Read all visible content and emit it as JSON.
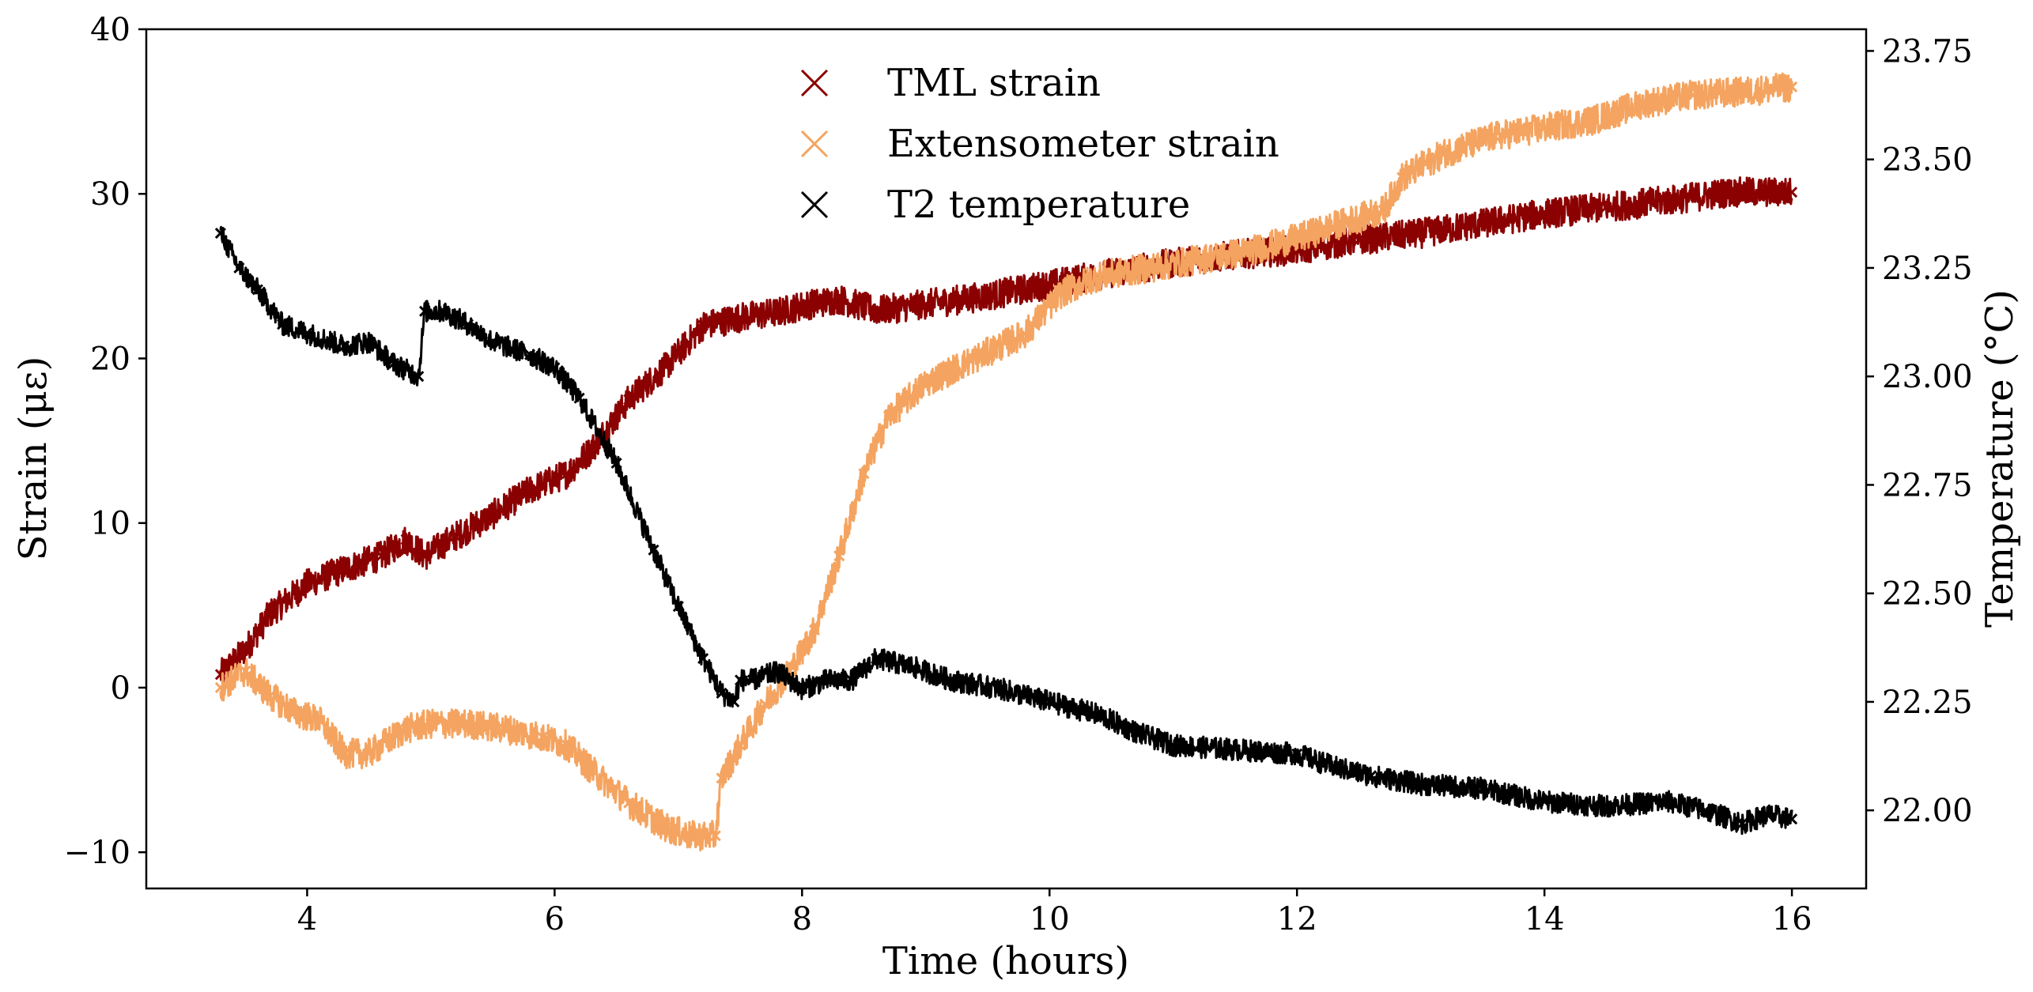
{
  "chart_data": {
    "type": "scatter",
    "title": "",
    "xlabel": "Time (hours)",
    "ylabel": "Strain (με)",
    "y2label": "Temperature (°C)",
    "xlim": [
      2.7,
      16.6
    ],
    "ylim": [
      -12.2,
      40
    ],
    "y2lim": [
      21.82,
      23.8
    ],
    "x_ticks": [
      4,
      6,
      8,
      10,
      12,
      14,
      16
    ],
    "x_tick_labels": [
      "4",
      "6",
      "8",
      "10",
      "12",
      "14",
      "16"
    ],
    "y_ticks": [
      -10,
      0,
      10,
      20,
      30,
      40
    ],
    "y_tick_labels": [
      "−10",
      "0",
      "10",
      "20",
      "30",
      "40"
    ],
    "y2_ticks": [
      22.0,
      22.25,
      22.5,
      22.75,
      23.0,
      23.25,
      23.5,
      23.75
    ],
    "y2_tick_labels": [
      "22.00",
      "22.25",
      "22.50",
      "22.75",
      "23.00",
      "23.25",
      "23.50",
      "23.75"
    ],
    "grid": false,
    "legend_position": "top-center",
    "marker": "x",
    "series": [
      {
        "name": "TML strain",
        "axis": "left",
        "color": "#8b0000",
        "x": [
          3.3,
          3.5,
          3.7,
          4.0,
          4.3,
          4.6,
          4.8,
          4.95,
          5.2,
          5.5,
          5.8,
          6.1,
          6.3,
          6.6,
          6.9,
          7.2,
          7.5,
          7.8,
          8.0,
          8.3,
          8.6,
          9.0,
          9.5,
          10.0,
          10.5,
          11.0,
          11.5,
          12.0,
          12.5,
          13.0,
          13.5,
          14.0,
          14.5,
          15.0,
          15.5,
          16.0
        ],
        "y": [
          0.8,
          2.3,
          4.5,
          6.3,
          7.2,
          8.0,
          9.0,
          8.0,
          9.2,
          10.5,
          12.0,
          13.0,
          14.5,
          17.5,
          19.5,
          22.0,
          22.5,
          22.8,
          23.2,
          23.6,
          22.9,
          23.3,
          23.8,
          24.5,
          25.2,
          25.8,
          26.3,
          26.6,
          27.2,
          27.6,
          28.2,
          28.8,
          29.2,
          29.6,
          30.1,
          30.1
        ],
        "spread": 0.9
      },
      {
        "name": "Extensometer strain",
        "axis": "left",
        "color": "#f4a460",
        "x": [
          3.3,
          3.5,
          3.7,
          3.9,
          4.1,
          4.3,
          4.5,
          4.8,
          5.0,
          5.3,
          5.6,
          5.9,
          6.1,
          6.3,
          6.6,
          6.9,
          7.1,
          7.3,
          7.35,
          7.5,
          7.7,
          7.9,
          8.1,
          8.3,
          8.5,
          8.7,
          9.0,
          9.4,
          9.8,
          10.1,
          10.4,
          10.8,
          11.2,
          11.6,
          12.0,
          12.4,
          12.7,
          12.85,
          13.2,
          13.6,
          14.0,
          14.4,
          14.8,
          15.2,
          15.6,
          16.0
        ],
        "y": [
          0.0,
          1.0,
          -0.5,
          -1.5,
          -2.0,
          -4.0,
          -4.0,
          -2.5,
          -2.2,
          -2.2,
          -2.5,
          -3.0,
          -3.5,
          -5.0,
          -7.0,
          -8.5,
          -9.0,
          -9.0,
          -5.5,
          -3.5,
          -1.0,
          1.0,
          3.5,
          8.0,
          13.0,
          16.5,
          18.5,
          20.0,
          21.5,
          24.0,
          25.0,
          25.5,
          26.0,
          26.5,
          27.3,
          28.3,
          29.0,
          31.0,
          32.5,
          33.5,
          34.0,
          34.5,
          35.5,
          36.0,
          36.2,
          36.5
        ],
        "spread": 0.9
      },
      {
        "name": "T2 temperature",
        "axis": "right",
        "color": "#000000",
        "x": [
          3.3,
          3.45,
          3.6,
          3.8,
          4.0,
          4.3,
          4.5,
          4.7,
          4.9,
          4.95,
          5.1,
          5.3,
          5.5,
          5.8,
          6.0,
          6.2,
          6.5,
          6.8,
          7.0,
          7.2,
          7.35,
          7.45,
          7.5,
          7.6,
          7.8,
          8.0,
          8.2,
          8.4,
          8.6,
          8.9,
          9.2,
          9.6,
          10.0,
          10.4,
          10.7,
          11.0,
          11.5,
          12.0,
          12.3,
          12.6,
          13.0,
          13.5,
          14.0,
          14.5,
          15.0,
          15.3,
          15.6,
          15.8,
          16.0
        ],
        "y": [
          23.33,
          23.25,
          23.2,
          23.12,
          23.1,
          23.07,
          23.08,
          23.03,
          23.0,
          23.15,
          23.15,
          23.12,
          23.08,
          23.05,
          23.02,
          22.95,
          22.8,
          22.6,
          22.47,
          22.35,
          22.27,
          22.25,
          22.3,
          22.3,
          22.32,
          22.28,
          22.3,
          22.3,
          22.35,
          22.33,
          22.3,
          22.28,
          22.25,
          22.22,
          22.18,
          22.15,
          22.14,
          22.13,
          22.1,
          22.08,
          22.06,
          22.05,
          22.02,
          22.01,
          22.02,
          22.0,
          21.97,
          21.99,
          21.98
        ],
        "spread": 0.025
      }
    ]
  }
}
